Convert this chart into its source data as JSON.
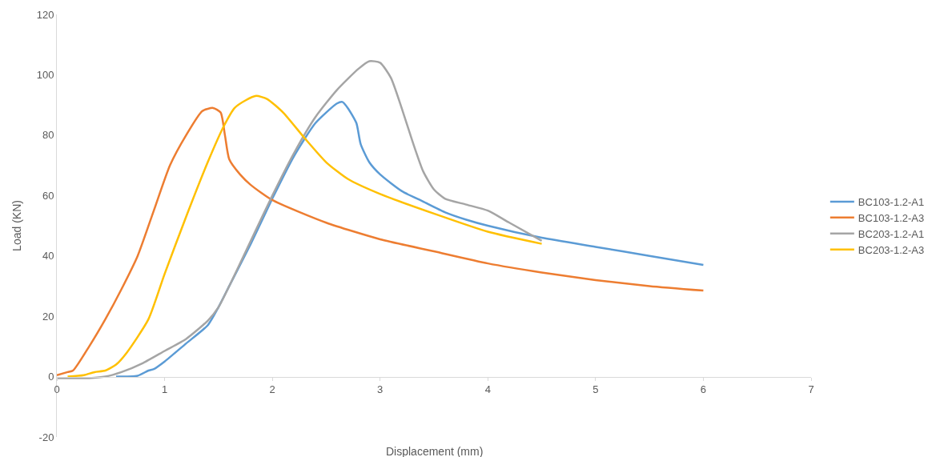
{
  "chart_data": {
    "type": "line",
    "xlabel": "Displacement (mm)",
    "ylabel": "Load (KN)",
    "xlim": [
      0,
      7
    ],
    "ylim": [
      -20,
      120
    ],
    "xticks": [
      0,
      1,
      2,
      3,
      4,
      5,
      6,
      7
    ],
    "yticks": [
      -20,
      0,
      20,
      40,
      60,
      80,
      100,
      120
    ],
    "grid": false,
    "legend": "right",
    "marker": "none",
    "line_style": "solid",
    "series": [
      {
        "name": "BC103-1.2-A1",
        "color": "#5b9bd5",
        "x": [
          0.55,
          0.75,
          0.85,
          0.9,
          1.0,
          1.2,
          1.4,
          1.5,
          1.6,
          1.8,
          2.0,
          2.2,
          2.4,
          2.6,
          2.65,
          2.7,
          2.78,
          2.82,
          2.9,
          3.0,
          3.2,
          3.4,
          3.6,
          3.8,
          4.0,
          4.5,
          5.0,
          5.5,
          6.0
        ],
        "values": [
          0,
          0.3,
          2,
          2.5,
          5,
          11,
          17,
          23,
          30,
          44,
          59,
          73,
          84,
          90.5,
          91,
          89,
          84,
          77,
          71,
          67,
          61.5,
          58,
          54.5,
          52,
          50,
          46,
          43,
          40,
          37
        ]
      },
      {
        "name": "BC103-1.2-A3",
        "color": "#ed7d31",
        "x": [
          0,
          0.1,
          0.15,
          0.3,
          0.45,
          0.6,
          0.75,
          0.9,
          1.05,
          1.2,
          1.35,
          1.45,
          1.52,
          1.56,
          1.6,
          1.7,
          1.8,
          2.0,
          2.5,
          3.0,
          3.5,
          4.0,
          4.5,
          5.0,
          5.5,
          6.0
        ],
        "values": [
          0.5,
          1.5,
          2,
          10,
          19,
          29,
          40,
          55,
          70,
          80,
          88,
          89,
          87.5,
          80,
          72,
          67,
          63.5,
          58.5,
          51,
          45.5,
          41.5,
          37.5,
          34.5,
          32,
          30,
          28.5
        ]
      },
      {
        "name": "BC203-1.2-A1",
        "color": "#a5a5a5",
        "x": [
          0,
          0.3,
          0.45,
          0.6,
          0.8,
          1.0,
          1.2,
          1.4,
          1.5,
          1.6,
          1.8,
          2.0,
          2.2,
          2.4,
          2.6,
          2.8,
          2.9,
          3.0,
          3.1,
          3.2,
          3.3,
          3.4,
          3.5,
          3.6,
          3.8,
          4.0,
          4.2,
          4.5
        ],
        "values": [
          -0.5,
          -0.5,
          0,
          1.5,
          4.5,
          8.5,
          12.5,
          18.5,
          23,
          30,
          45,
          60,
          74,
          86,
          95,
          102,
          104.5,
          104,
          99,
          89,
          78,
          68,
          62,
          59,
          57,
          55,
          51,
          45
        ]
      },
      {
        "name": "BC203-1.2-A3",
        "color": "#ffc000",
        "x": [
          0.1,
          0.25,
          0.35,
          0.45,
          0.55,
          0.65,
          0.85,
          1.0,
          1.2,
          1.4,
          1.55,
          1.65,
          1.75,
          1.85,
          1.95,
          2.1,
          2.3,
          2.5,
          2.7,
          3.0,
          3.5,
          4.0,
          4.5
        ],
        "values": [
          0,
          0.5,
          1.5,
          2,
          4,
          8,
          19,
          34,
          53,
          71,
          83,
          89,
          91.5,
          93,
          92,
          87.5,
          79,
          71,
          65.5,
          60.5,
          54,
          48,
          44
        ]
      }
    ]
  }
}
